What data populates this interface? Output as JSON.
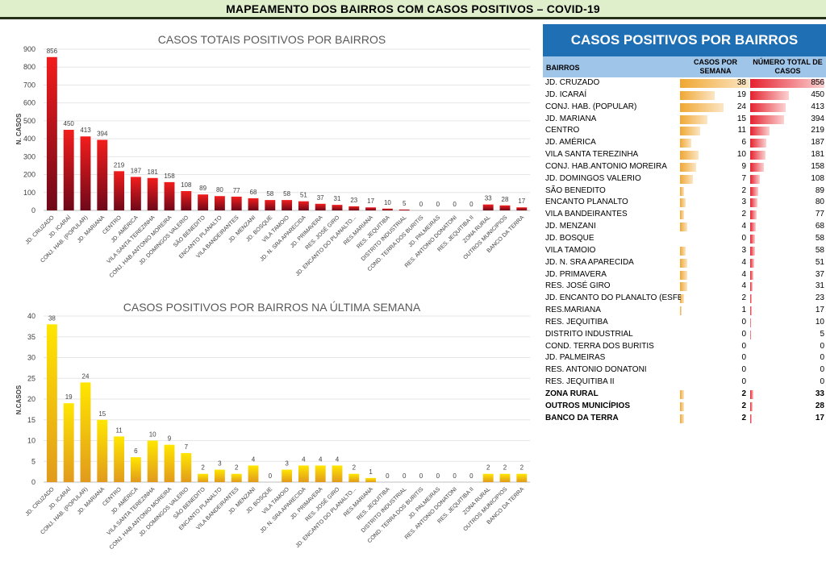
{
  "header": {
    "title": "MAPEAMENTO DOS BAIRROS COM CASOS POSITIVOS – COVID-19"
  },
  "colors": {
    "header_bg": "#dfeecb",
    "total_bar": "#e5222f",
    "week_bar": "#f5c400",
    "side_title_bg": "#1f6fb5",
    "side_head_bg": "#9fc5e8"
  },
  "chart_data": [
    {
      "type": "bar",
      "title": "CASOS TOTAIS POSITIVOS POR BAIRROS",
      "ylabel": "N. CASOS",
      "ylim": [
        0,
        900
      ],
      "yticks": [
        0,
        100,
        200,
        300,
        400,
        500,
        600,
        700,
        800,
        900
      ],
      "grid": true,
      "categories": [
        "JD. CRUZADO",
        "JD. ICARAÍ",
        "CONJ. HAB. (POPULAR)",
        "JD. MARIANA",
        "CENTRO",
        "JD. AMÉRICA",
        "VILA SANTA TEREZINHA",
        "CONJ. HAB.ANTONIO MOREIRA",
        "JD. DOMINGOS VALERIO",
        "SÃO BENEDITO",
        "ENCANTO PLANALTO",
        "VILA BANDEIRANTES",
        "JD. MENZANI",
        "JD. BOSQUE",
        "VILA TAMOIO",
        "JD. N. SRA APARECIDA",
        "JD. PRIMAVERA",
        "RES. JOSÉ GIRO",
        "JD. ENCANTO DO PLANALTO...",
        "RES.MARIANA",
        "RES. JEQUITIBA",
        "DISTRITO INDUSTRIAL",
        "COND. TERRA DOS BURITIS",
        "JD. PALMEIRAS",
        "RES. ANTONIO DONATONI",
        "RES. JEQUITIBA II",
        "ZONA RURAL",
        "OUTROS MUNICIPIOS",
        "BANCO DA TERRA"
      ],
      "values": [
        856,
        450,
        413,
        394,
        219,
        187,
        181,
        158,
        108,
        89,
        80,
        77,
        68,
        58,
        58,
        51,
        37,
        31,
        23,
        17,
        10,
        5,
        0,
        0,
        0,
        0,
        33,
        28,
        17
      ]
    },
    {
      "type": "bar",
      "title": "CASOS POSITIVOS POR BAIRROS NA ÚLTIMA SEMANA",
      "ylabel": "N.CASOS",
      "ylim": [
        0,
        40
      ],
      "yticks": [
        0,
        5,
        10,
        15,
        20,
        25,
        30,
        35,
        40
      ],
      "grid": true,
      "categories": [
        "JD. CRUZADO",
        "JD. ICARAÍ",
        "CONJ. HAB. (POPULAR)",
        "JD. MARIANA",
        "CENTRO",
        "JD. AMÉRICA",
        "VILA SANTA TEREZINHA",
        "CONJ. HAB.ANTONIO MOREIRA",
        "JD. DOMINGOS VALERIO",
        "SÃO BENEDITO",
        "ENCANTO PLANALTO",
        "VILA BANDEIRANTES",
        "JD. MENZANI",
        "JD. BOSQUE",
        "VILA TAMOIO",
        "JD. N. SRA APARECIDA",
        "JD. PRIMAVERA",
        "RES. JOSÉ GIRO",
        "JD. ENCANTO DO PLANALTO...",
        "RES.MARIANA",
        "RES. JEQUITIBA",
        "DISTRITO INDUSTRIAL",
        "COND. TERRA DOS BURITIS",
        "JD. PALMEIRAS",
        "RES. ANTONIO DONATONI",
        "RES. JEQUITIBA II",
        "ZONA RURAL",
        "OUTROS MUNICIPIOS",
        "BANCO DA TERRA"
      ],
      "values": [
        38,
        19,
        24,
        15,
        11,
        6,
        10,
        9,
        7,
        2,
        3,
        2,
        4,
        0,
        3,
        4,
        4,
        4,
        2,
        1,
        0,
        0,
        0,
        0,
        0,
        0,
        2,
        2,
        2
      ]
    },
    {
      "type": "table",
      "title": "CASOS POSITIVOS POR BAIRROS",
      "columns": [
        "BAIRROS",
        "CASOS POR SEMANA",
        "NÚMERO TOTAL DE CASOS"
      ],
      "rows": [
        {
          "name": "JD. CRUZADO",
          "week": 38,
          "total": 856
        },
        {
          "name": "JD. ICARAÍ",
          "week": 19,
          "total": 450
        },
        {
          "name": "CONJ. HAB. (POPULAR)",
          "week": 24,
          "total": 413
        },
        {
          "name": "JD. MARIANA",
          "week": 15,
          "total": 394
        },
        {
          "name": "CENTRO",
          "week": 11,
          "total": 219
        },
        {
          "name": "JD. AMÉRICA",
          "week": 6,
          "total": 187
        },
        {
          "name": "VILA SANTA TEREZINHA",
          "week": 10,
          "total": 181
        },
        {
          "name": "CONJ. HAB.ANTONIO MOREIRA",
          "week": 9,
          "total": 158
        },
        {
          "name": "JD. DOMINGOS VALERIO",
          "week": 7,
          "total": 108
        },
        {
          "name": "SÃO BENEDITO",
          "week": 2,
          "total": 89
        },
        {
          "name": "ENCANTO PLANALTO",
          "week": 3,
          "total": 80
        },
        {
          "name": "VILA BANDEIRANTES",
          "week": 2,
          "total": 77
        },
        {
          "name": "JD. MENZANI",
          "week": 4,
          "total": 68
        },
        {
          "name": "JD. BOSQUE",
          "week": 0,
          "total": 58
        },
        {
          "name": "VILA TAMOIO",
          "week": 3,
          "total": 58
        },
        {
          "name": "JD. N. SRA APARECIDA",
          "week": 4,
          "total": 51
        },
        {
          "name": "JD. PRIMAVERA",
          "week": 4,
          "total": 37
        },
        {
          "name": "RES. JOSÉ GIRO",
          "week": 4,
          "total": 31
        },
        {
          "name": "JD. ENCANTO DO PLANALTO (ESFERA)",
          "week": 2,
          "total": 23
        },
        {
          "name": "RES.MARIANA",
          "week": 1,
          "total": 17
        },
        {
          "name": "RES. JEQUITIBA",
          "week": 0,
          "total": 10
        },
        {
          "name": "DISTRITO INDUSTRIAL",
          "week": 0,
          "total": 5
        },
        {
          "name": "COND. TERRA DOS BURITIS",
          "week": 0,
          "total": 0
        },
        {
          "name": "JD. PALMEIRAS",
          "week": 0,
          "total": 0
        },
        {
          "name": "RES. ANTONIO DONATONI",
          "week": 0,
          "total": 0
        },
        {
          "name": "RES. JEQUITIBA II",
          "week": 0,
          "total": 0
        },
        {
          "name": "ZONA RURAL",
          "week": 2,
          "total": 33,
          "bold": true
        },
        {
          "name": "OUTROS MUNICÍPIOS",
          "week": 2,
          "total": 28,
          "bold": true
        },
        {
          "name": "BANCO DA TERRA",
          "week": 2,
          "total": 17,
          "bold": true
        }
      ]
    }
  ]
}
